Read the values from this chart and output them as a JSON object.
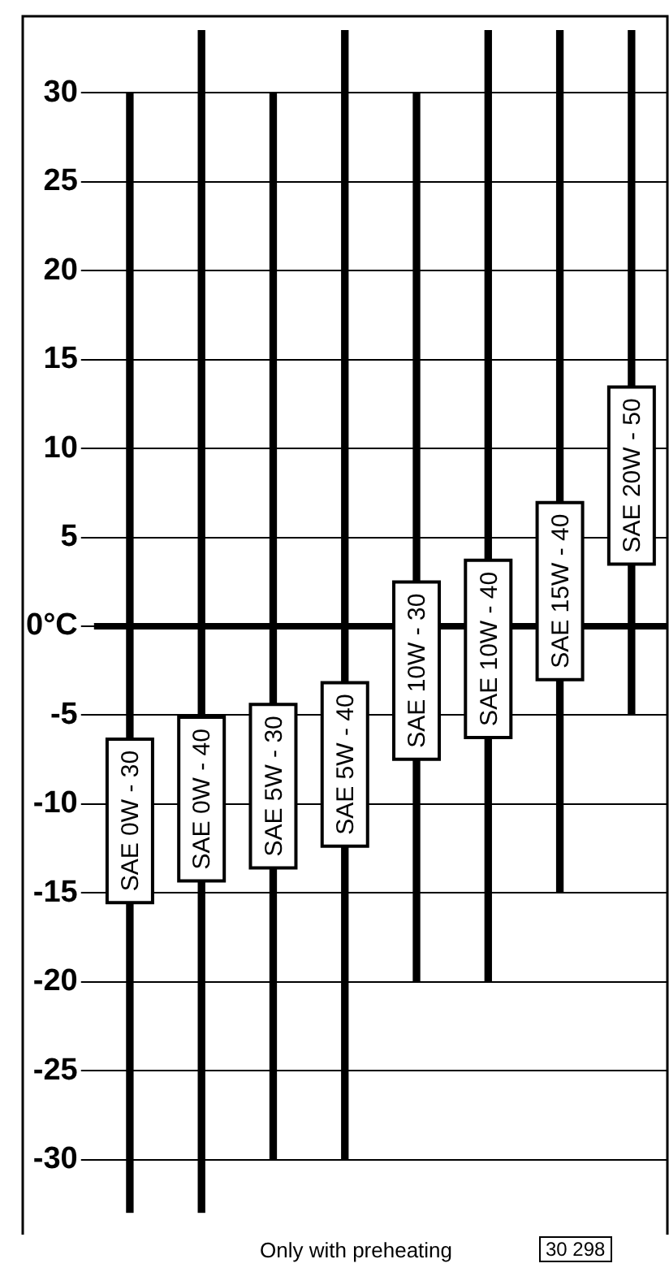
{
  "chart_data": {
    "type": "bar",
    "categories": [
      "SAE 0W - 30",
      "SAE 0W - 40",
      "SAE 5W - 30",
      "SAE 5W - 40",
      "SAE 10W - 30",
      "SAE 10W - 40",
      "SAE 15W - 40",
      "SAE 20W - 50"
    ],
    "base": [
      -33,
      -33,
      -30,
      -30,
      -20,
      -20,
      -15,
      -5
    ],
    "values": [
      63,
      66.5,
      60,
      63.5,
      50,
      53.5,
      48.5,
      38.5
    ],
    "color": "#000000",
    "ylim": [
      -33,
      34
    ],
    "yticks": [
      {
        "value": -30,
        "label": "-30"
      },
      {
        "value": -25,
        "label": "-25"
      },
      {
        "value": -20,
        "label": "-20"
      },
      {
        "value": -15,
        "label": "-15"
      },
      {
        "value": -10,
        "label": "-10"
      },
      {
        "value": -5,
        "label": "-5"
      },
      {
        "value": 0,
        "label": "0°C"
      },
      5,
      10,
      15,
      20,
      25,
      30
    ],
    "ref_lines": [
      {
        "axis": "y",
        "value": 0,
        "color": "#000000"
      }
    ],
    "grid": "y",
    "annotations": [
      "Only with preheating",
      "30 298"
    ]
  }
}
